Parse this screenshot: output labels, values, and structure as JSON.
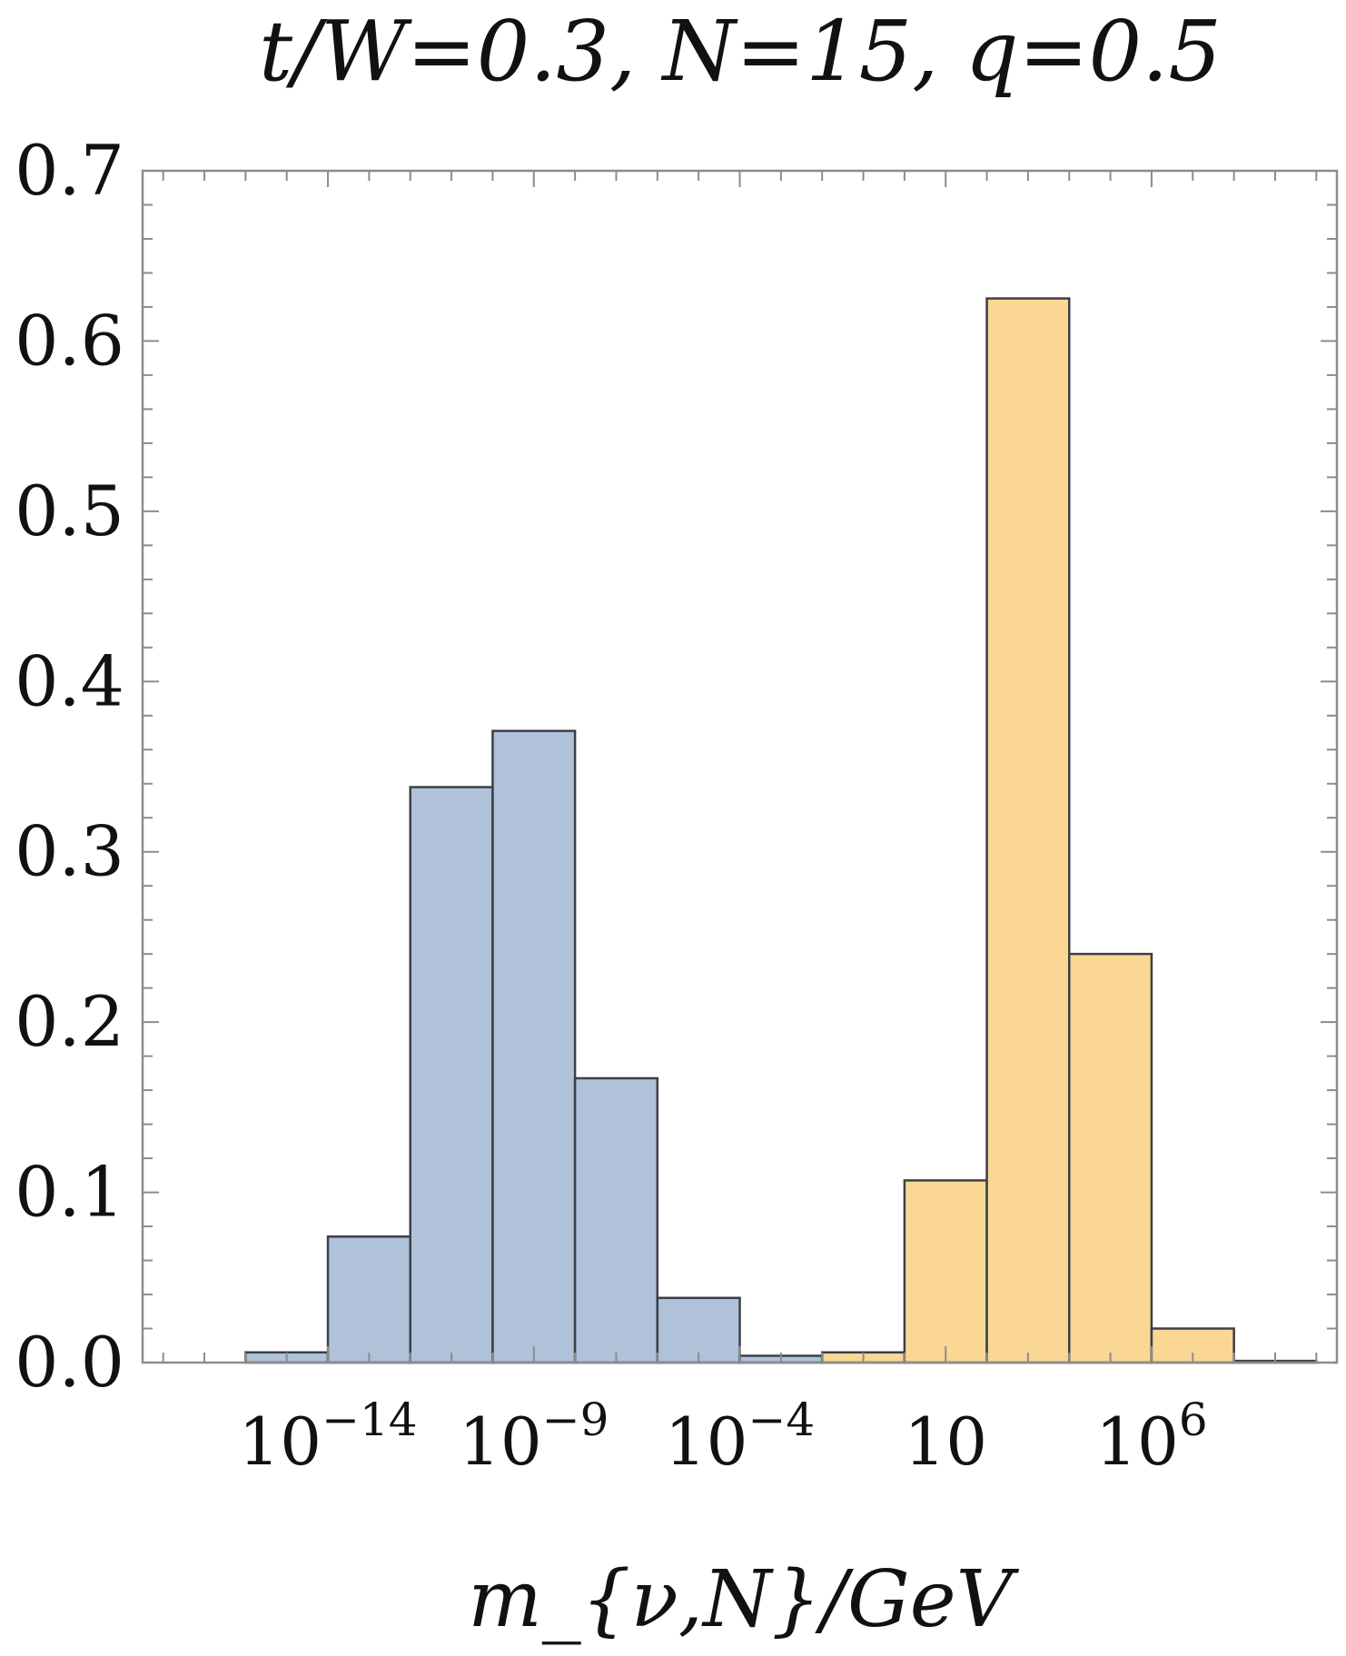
{
  "chart_data": {
    "type": "bar",
    "title": "t/W=0.3, N=15, q=0.5",
    "xlabel": "m_{ν,N}/GeV",
    "ylabel": "",
    "x_scale": "log10",
    "xlim_log10": [
      -18.5,
      10.5
    ],
    "ylim": [
      0,
      0.7
    ],
    "grid": false,
    "y_ticks": [
      {
        "value": 0.0,
        "label": "0.0"
      },
      {
        "value": 0.1,
        "label": "0.1"
      },
      {
        "value": 0.2,
        "label": "0.2"
      },
      {
        "value": 0.3,
        "label": "0.3"
      },
      {
        "value": 0.4,
        "label": "0.4"
      },
      {
        "value": 0.5,
        "label": "0.5"
      },
      {
        "value": 0.6,
        "label": "0.6"
      },
      {
        "value": 0.7,
        "label": "0.7"
      }
    ],
    "x_ticks": [
      {
        "log10": -14,
        "base": "10",
        "exp": "−14"
      },
      {
        "log10": -9,
        "base": "10",
        "exp": "−9"
      },
      {
        "log10": -4,
        "base": "10",
        "exp": "−4"
      },
      {
        "log10": 1,
        "base": "10",
        "exp": ""
      },
      {
        "log10": 6,
        "base": "10",
        "exp": "6"
      }
    ],
    "bin_width_log10": 2,
    "series": [
      {
        "color": "#b0c1da",
        "bins": [
          {
            "start_log10": -16,
            "value": 0.006
          },
          {
            "start_log10": -14,
            "value": 0.074
          },
          {
            "start_log10": -12,
            "value": 0.338
          },
          {
            "start_log10": -10,
            "value": 0.371
          },
          {
            "start_log10": -8,
            "value": 0.167
          },
          {
            "start_log10": -6,
            "value": 0.038
          },
          {
            "start_log10": -4,
            "value": 0.004
          }
        ]
      },
      {
        "color": "#fad894",
        "bins": [
          {
            "start_log10": -2,
            "value": 0.006
          },
          {
            "start_log10": 0,
            "value": 0.107
          },
          {
            "start_log10": 2,
            "value": 0.625
          },
          {
            "start_log10": 4,
            "value": 0.24
          },
          {
            "start_log10": 6,
            "value": 0.02
          },
          {
            "start_log10": 8,
            "value": 0.001
          }
        ]
      }
    ]
  },
  "colors": {
    "frame": "#8c8c8c",
    "bar_edge": "#3c3f47",
    "text": "#111111"
  }
}
